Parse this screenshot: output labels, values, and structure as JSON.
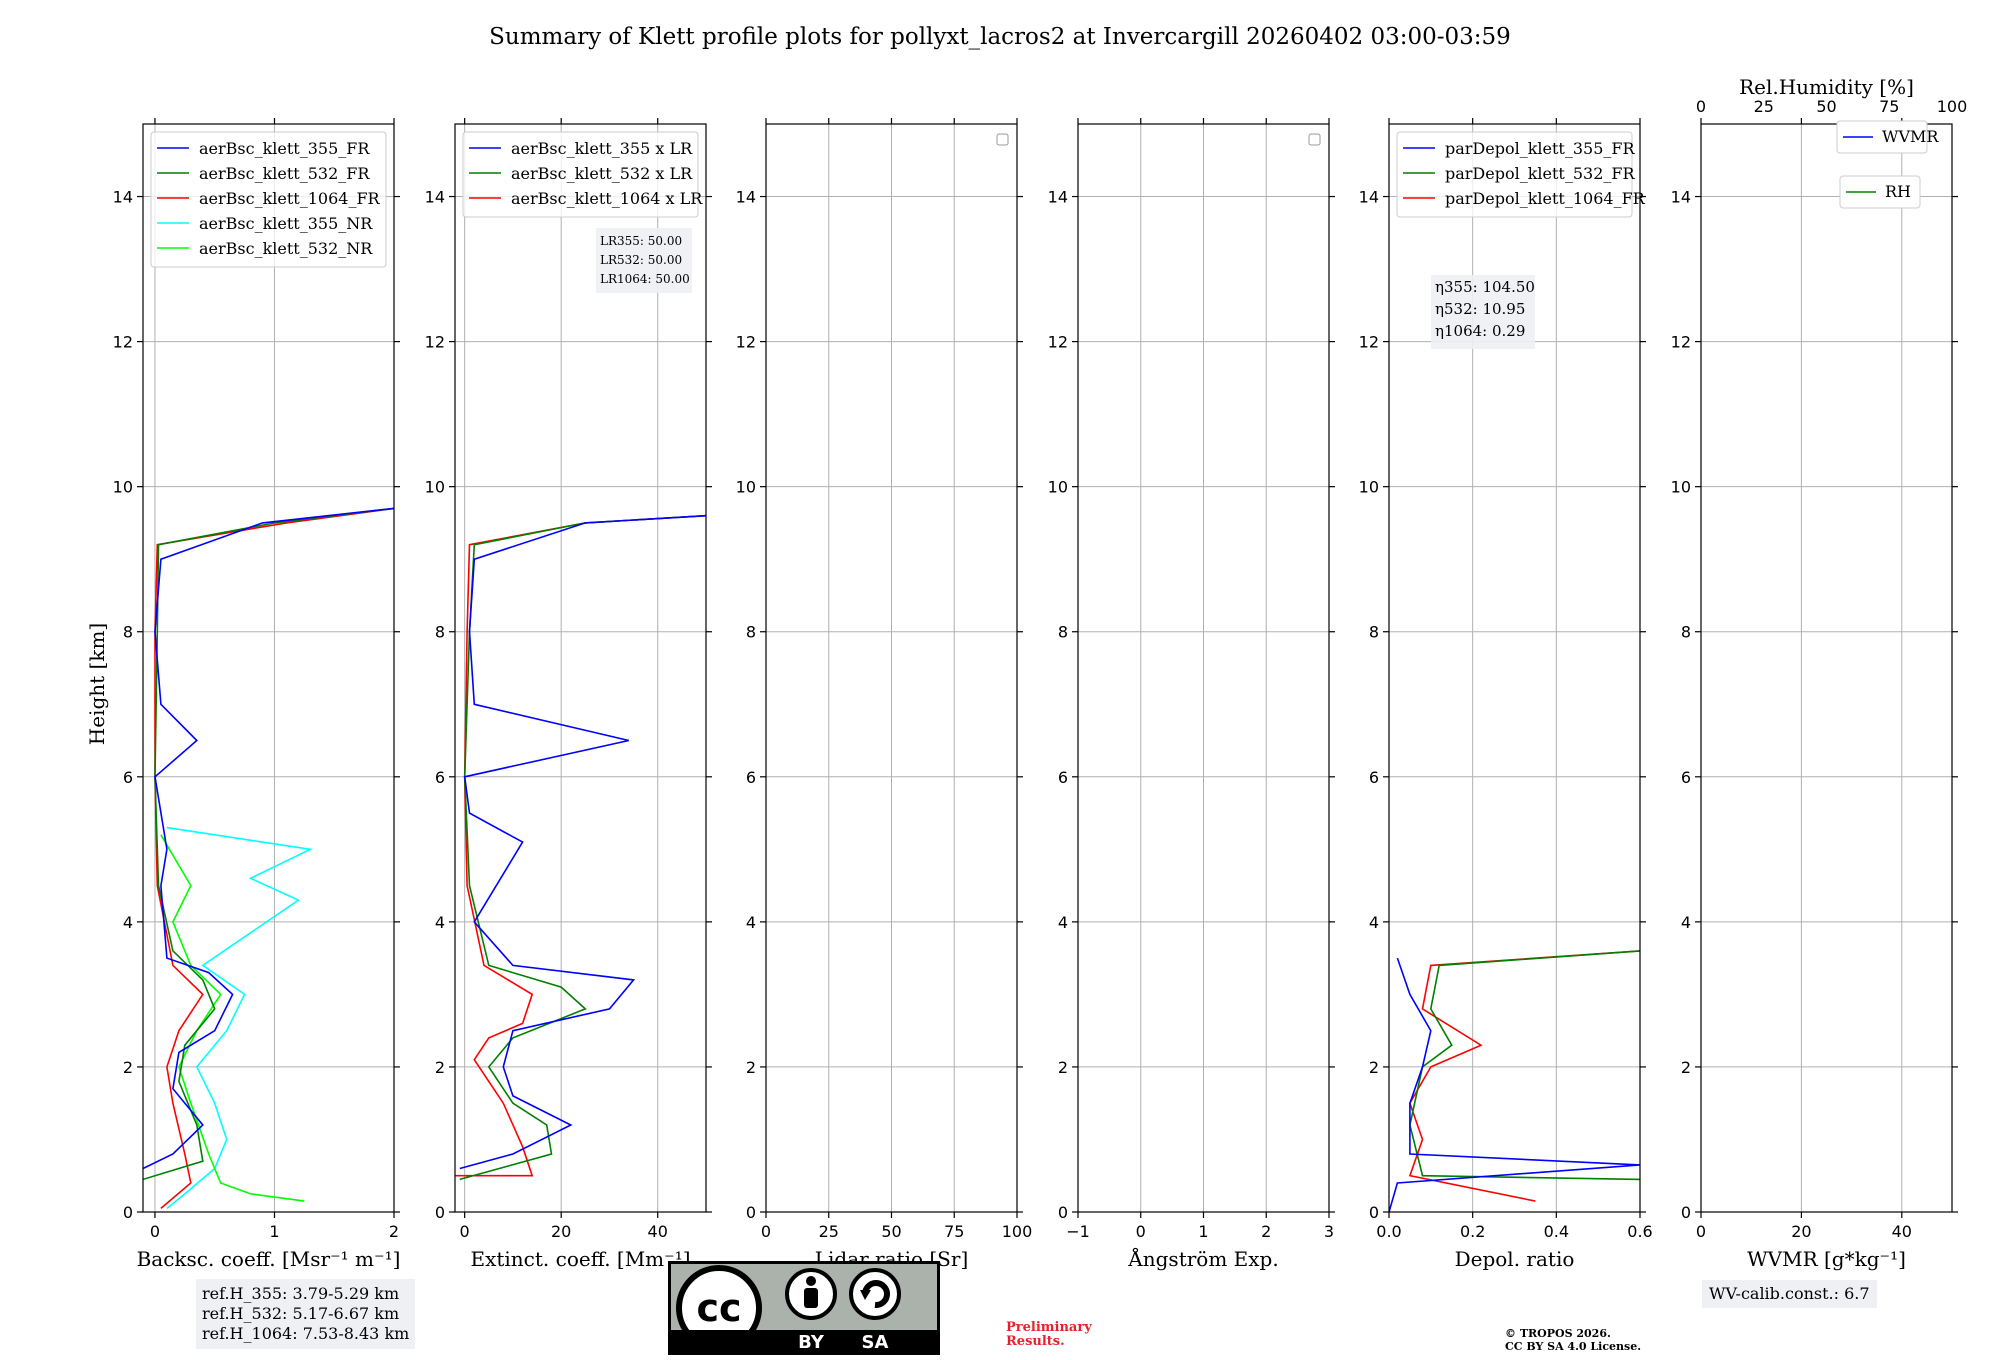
{
  "chart_data": {
    "type": "line",
    "title": "Summary of Klett profile plots for pollyxt_lacros2 at Invercargill 20260402 03:00-03:59",
    "ylabel": "Height [km]",
    "ylim": [
      0,
      15
    ],
    "yticks": [
      0,
      2,
      4,
      6,
      8,
      10,
      12,
      14
    ],
    "panels": [
      {
        "id": "backscatter",
        "xlabel": "Backsc. coeff. [Msr⁻¹ m⁻¹]",
        "xlim": [
          -0.1,
          2
        ],
        "xticks": [
          0,
          1,
          2
        ],
        "xticklabels": [
          "0",
          "1",
          "2"
        ],
        "legend": [
          "aerBsc_klett_355_FR",
          "aerBsc_klett_532_FR",
          "aerBsc_klett_1064_FR",
          "aerBsc_klett_355_NR",
          "aerBsc_klett_532_NR"
        ],
        "series": [
          {
            "name": "aerBsc_klett_355_NR",
            "color": "#00ffff",
            "points": [
              [
                0.1,
                0.05
              ],
              [
                0.25,
                0.25
              ],
              [
                0.5,
                0.6
              ],
              [
                0.6,
                1.0
              ],
              [
                0.5,
                1.5
              ],
              [
                0.35,
                2.0
              ],
              [
                0.6,
                2.5
              ],
              [
                0.75,
                3.0
              ],
              [
                0.4,
                3.4
              ],
              [
                1.2,
                4.3
              ],
              [
                0.8,
                4.6
              ],
              [
                1.3,
                5.0
              ],
              [
                0.1,
                5.3
              ]
            ]
          },
          {
            "name": "aerBsc_klett_532_NR",
            "color": "#00ff00",
            "points": [
              [
                1.25,
                0.15
              ],
              [
                0.8,
                0.25
              ],
              [
                0.55,
                0.4
              ],
              [
                0.45,
                0.8
              ],
              [
                0.3,
                1.5
              ],
              [
                0.2,
                2.0
              ],
              [
                0.35,
                2.5
              ],
              [
                0.55,
                3.0
              ],
              [
                0.3,
                3.4
              ],
              [
                0.15,
                4.0
              ],
              [
                0.3,
                4.5
              ],
              [
                0.05,
                5.2
              ]
            ]
          },
          {
            "name": "aerBsc_klett_1064_FR",
            "color": "#ff0000",
            "points": [
              [
                0.05,
                0.05
              ],
              [
                0.3,
                0.4
              ],
              [
                0.25,
                0.8
              ],
              [
                0.15,
                1.5
              ],
              [
                0.1,
                2.0
              ],
              [
                0.2,
                2.5
              ],
              [
                0.4,
                3.0
              ],
              [
                0.15,
                3.4
              ],
              [
                0.02,
                4.5
              ],
              [
                0.0,
                6.0
              ],
              [
                0.0,
                8.0
              ],
              [
                0.02,
                9.2
              ],
              [
                1.1,
                9.5
              ],
              [
                2.0,
                9.7
              ]
            ]
          },
          {
            "name": "aerBsc_klett_532_FR",
            "color": "#008000",
            "points": [
              [
                -0.1,
                0.45
              ],
              [
                0.4,
                0.7
              ],
              [
                0.35,
                1.2
              ],
              [
                0.2,
                1.8
              ],
              [
                0.25,
                2.3
              ],
              [
                0.5,
                2.8
              ],
              [
                0.4,
                3.2
              ],
              [
                0.15,
                3.6
              ],
              [
                0.03,
                4.5
              ],
              [
                0.0,
                6.0
              ],
              [
                0.02,
                8.0
              ],
              [
                0.03,
                9.2
              ],
              [
                1.0,
                9.5
              ],
              [
                2.0,
                9.7
              ]
            ]
          },
          {
            "name": "aerBsc_klett_355_FR",
            "color": "#0000ff",
            "points": [
              [
                -0.1,
                0.6
              ],
              [
                0.15,
                0.8
              ],
              [
                0.4,
                1.2
              ],
              [
                0.15,
                1.7
              ],
              [
                0.2,
                2.2
              ],
              [
                0.5,
                2.5
              ],
              [
                0.65,
                3.0
              ],
              [
                0.45,
                3.3
              ],
              [
                0.1,
                3.5
              ],
              [
                0.05,
                4.5
              ],
              [
                0.1,
                5.0
              ],
              [
                0.0,
                6.0
              ],
              [
                0.35,
                6.5
              ],
              [
                0.05,
                7.0
              ],
              [
                0.0,
                8.0
              ],
              [
                0.05,
                9.0
              ],
              [
                0.9,
                9.5
              ],
              [
                2.0,
                9.7
              ]
            ]
          }
        ]
      },
      {
        "id": "extinction",
        "xlabel": "Extinct. coeff. [Mm⁻¹]",
        "xlim": [
          -2,
          50
        ],
        "xticks": [
          0,
          20,
          40
        ],
        "xticklabels": [
          "0",
          "20",
          "40"
        ],
        "legend": [
          "aerBsc_klett_355 x LR",
          "aerBsc_klett_532 x LR",
          "aerBsc_klett_1064 x LR"
        ],
        "annotation": [
          "LR355: 50.00",
          "LR532: 50.00",
          "LR1064: 50.00"
        ],
        "series": [
          {
            "name": "aerBsc_klett_1064 x LR",
            "color": "#ff0000",
            "points": [
              [
                -2,
                0.5
              ],
              [
                14,
                0.5
              ],
              [
                12,
                0.9
              ],
              [
                8,
                1.5
              ],
              [
                2,
                2.1
              ],
              [
                5,
                2.4
              ],
              [
                12,
                2.6
              ],
              [
                14,
                3.0
              ],
              [
                4,
                3.4
              ],
              [
                0.5,
                4.5
              ],
              [
                0,
                6.0
              ],
              [
                0.5,
                8.0
              ],
              [
                1,
                9.2
              ],
              [
                25,
                9.5
              ],
              [
                50,
                9.6
              ]
            ]
          },
          {
            "name": "aerBsc_klett_532 x LR",
            "color": "#008000",
            "points": [
              [
                -1,
                0.45
              ],
              [
                18,
                0.8
              ],
              [
                17,
                1.2
              ],
              [
                10,
                1.5
              ],
              [
                5,
                2.0
              ],
              [
                10,
                2.4
              ],
              [
                25,
                2.8
              ],
              [
                20,
                3.1
              ],
              [
                5,
                3.4
              ],
              [
                1,
                4.5
              ],
              [
                0,
                6.0
              ],
              [
                1,
                8.0
              ],
              [
                2,
                9.2
              ],
              [
                25,
                9.5
              ],
              [
                50,
                9.6
              ]
            ]
          },
          {
            "name": "aerBsc_klett_355 x LR",
            "color": "#0000ff",
            "points": [
              [
                -1,
                0.6
              ],
              [
                10,
                0.8
              ],
              [
                22,
                1.2
              ],
              [
                10,
                1.6
              ],
              [
                8,
                2.0
              ],
              [
                10,
                2.5
              ],
              [
                30,
                2.8
              ],
              [
                35,
                3.2
              ],
              [
                10,
                3.4
              ],
              [
                2,
                4.0
              ],
              [
                12,
                5.1
              ],
              [
                1,
                5.5
              ],
              [
                0,
                6.0
              ],
              [
                34,
                6.5
              ],
              [
                2,
                7.0
              ],
              [
                1,
                8.0
              ],
              [
                2,
                9.0
              ],
              [
                25,
                9.5
              ],
              [
                50,
                9.6
              ]
            ]
          }
        ]
      },
      {
        "id": "lidar-ratio",
        "xlabel": "Lidar ratio [Sr]",
        "xlim": [
          0,
          100
        ],
        "xticks": [
          0,
          25,
          50,
          75,
          100
        ],
        "xticklabels": [
          "0",
          "25",
          "50",
          "75",
          "100"
        ],
        "legend": [],
        "series": []
      },
      {
        "id": "angstrom",
        "xlabel": "Ångström Exp.",
        "xlim": [
          -1,
          3
        ],
        "xticks": [
          -1,
          0,
          1,
          2,
          3
        ],
        "xticklabels": [
          "−1",
          "0",
          "1",
          "2",
          "3"
        ],
        "legend": [],
        "series": []
      },
      {
        "id": "depol",
        "xlabel": "Depol. ratio",
        "xlim": [
          0,
          0.6
        ],
        "xticks": [
          0,
          0.2,
          0.4,
          0.6
        ],
        "xticklabels": [
          "0.0",
          "0.2",
          "0.4",
          "0.6"
        ],
        "legend": [
          "parDepol_klett_355_FR",
          "parDepol_klett_532_FR",
          "parDepol_klett_1064_FR"
        ],
        "annotation": [
          "η355: 104.50",
          "η532: 10.95",
          "η1064: 0.29"
        ],
        "series": [
          {
            "name": "parDepol_klett_1064_FR",
            "color": "#ff0000",
            "points": [
              [
                0.35,
                0.15
              ],
              [
                0.05,
                0.5
              ],
              [
                0.08,
                1.0
              ],
              [
                0.05,
                1.5
              ],
              [
                0.1,
                2.0
              ],
              [
                0.22,
                2.3
              ],
              [
                0.08,
                2.8
              ],
              [
                0.1,
                3.4
              ],
              [
                0.6,
                3.6
              ]
            ]
          },
          {
            "name": "parDepol_klett_532_FR",
            "color": "#008000",
            "points": [
              [
                0.6,
                0.45
              ],
              [
                0.08,
                0.5
              ],
              [
                0.05,
                1.2
              ],
              [
                0.08,
                2.0
              ],
              [
                0.15,
                2.3
              ],
              [
                0.1,
                2.8
              ],
              [
                0.12,
                3.4
              ],
              [
                0.6,
                3.6
              ]
            ]
          },
          {
            "name": "parDepol_klett_355_FR",
            "color": "#0000ff",
            "points": [
              [
                0.0,
                0.0
              ],
              [
                0.02,
                0.4
              ],
              [
                0.6,
                0.65
              ],
              [
                0.05,
                0.8
              ],
              [
                0.05,
                1.5
              ],
              [
                0.08,
                2.0
              ],
              [
                0.1,
                2.5
              ],
              [
                0.05,
                3.0
              ],
              [
                0.02,
                3.5
              ]
            ]
          }
        ]
      },
      {
        "id": "wvmr",
        "xlabel": "WVMR [g*kg⁻¹]",
        "xlim": [
          0,
          50
        ],
        "xticks": [
          0,
          20,
          40
        ],
        "xticklabels": [
          "0",
          "20",
          "40"
        ],
        "top_xlabel": "Rel.Humidity [%]",
        "top_xticks": [
          0,
          25,
          50,
          75,
          100
        ],
        "legend": [
          "WVMR",
          "RH"
        ],
        "series": []
      }
    ]
  },
  "reference_heights": [
    "ref.H_355: 3.79-5.29 km",
    "ref.H_532: 5.17-6.67 km",
    "ref.H_1064: 7.53-8.43 km"
  ],
  "wv_calib": "WV-calib.const.: 6.7",
  "license_badge": {
    "left": "cc",
    "bottom_labels": [
      "BY",
      "SA"
    ]
  },
  "preliminary": [
    "Preliminary",
    "Results."
  ],
  "copyright": [
    "© TROPOS 2026.",
    "CC BY SA 4.0 License."
  ]
}
